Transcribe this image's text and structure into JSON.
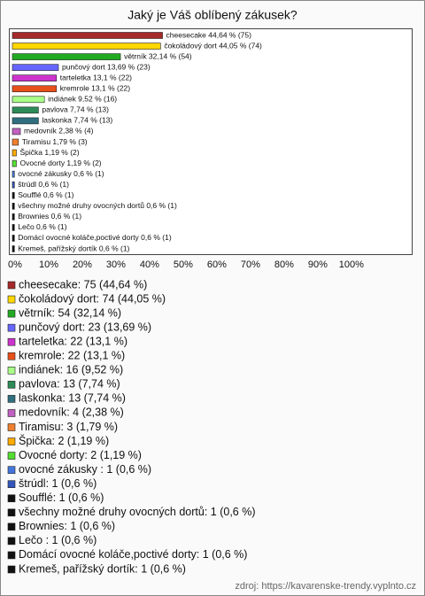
{
  "chart_data": {
    "type": "bar",
    "orientation": "horizontal",
    "title": "Jaký je Váš oblíbený zákusek?",
    "values": [
      44.64,
      44.05,
      32.14,
      13.69,
      13.1,
      13.1,
      9.52,
      7.74,
      7.74,
      2.38,
      1.79,
      1.19,
      1.19,
      0.6,
      0.6,
      0.6,
      0.6,
      0.6,
      0.6,
      0.6,
      0.6
    ],
    "value_labels": [
      "cheesecake 44,64 % (75)",
      "čokoládový dort 44,05 % (74)",
      "větrník 32,14 % (54)",
      "punčový dort 13,69 % (23)",
      "tarteletka 13,1 % (22)",
      "kremrole 13,1 % (22)",
      "indiánek 9,52 % (16)",
      "pavlova 7,74 % (13)",
      "laskonka 7,74 % (13)",
      "medovník 2,38 % (4)",
      "Tiramisu 1,79 % (3)",
      "Špička 1,19 % (2)",
      "Ovocné dorty 1,19 % (2)",
      "ovocné zákusky  0,6 % (1)",
      "štrúdl 0,6 % (1)",
      "Soufflé 0,6 % (1)",
      "všechny možné druhy ovocných dortů 0,6 % (1)",
      "Brownies 0,6 % (1)",
      "Lečo  0,6 % (1)",
      "Domácí ovocné koláče,poctivé dorty 0,6 % (1)",
      "Kremeš, pařížský dortík 0,6 % (1)"
    ],
    "legend_labels": [
      "cheesecake: 75 (44,64 %)",
      "čokoládový dort: 74 (44,05 %)",
      "větrník: 54 (32,14 %)",
      "punčový dort: 23 (13,69 %)",
      "tarteletka: 22 (13,1 %)",
      "kremrole: 22 (13,1 %)",
      "indiánek: 16 (9,52 %)",
      "pavlova: 13 (7,74 %)",
      "laskonka: 13 (7,74 %)",
      "medovník: 4 (2,38 %)",
      "Tiramisu: 3 (1,79 %)",
      "Špička: 2 (1,19 %)",
      "Ovocné dorty: 2 (1,19 %)",
      "ovocné zákusky : 1 (0,6 %)",
      "štrúdl: 1 (0,6 %)",
      "Soufflé: 1 (0,6 %)",
      "všechny možné druhy ovocných dortů: 1 (0,6 %)",
      "Brownies: 1 (0,6 %)",
      "Lečo : 1 (0,6 %)",
      "Domácí ovocné koláče,poctivé dorty: 1 (0,6 %)",
      "Kremeš, pařížský dortík: 1 (0,6 %)"
    ],
    "colors": [
      "#a52a2a",
      "#ffd700",
      "#22aa22",
      "#6666ff",
      "#cc33cc",
      "#e8501a",
      "#aaff88",
      "#2e8b57",
      "#2f6f7f",
      "#c060c0",
      "#f07f30",
      "#ffaa00",
      "#55dd33",
      "#4477dd",
      "#3355bb",
      "#111111",
      "#111111",
      "#111111",
      "#111111",
      "#111111",
      "#111111"
    ],
    "xlim": [
      0,
      119
    ],
    "xticks": [
      {
        "value": 0,
        "label": "0%"
      },
      {
        "value": 10,
        "label": "10%"
      },
      {
        "value": 20,
        "label": "20%"
      },
      {
        "value": 30,
        "label": "30%"
      },
      {
        "value": 40,
        "label": "40%"
      },
      {
        "value": 50,
        "label": "50%"
      },
      {
        "value": 60,
        "label": "60%"
      },
      {
        "value": 70,
        "label": "70%"
      },
      {
        "value": 80,
        "label": "80%"
      },
      {
        "value": 90,
        "label": "90%"
      },
      {
        "value": 100,
        "label": "100%"
      }
    ],
    "grid": false,
    "source": "zdroj: https://kavarenske-trendy.vyplnto.cz"
  }
}
